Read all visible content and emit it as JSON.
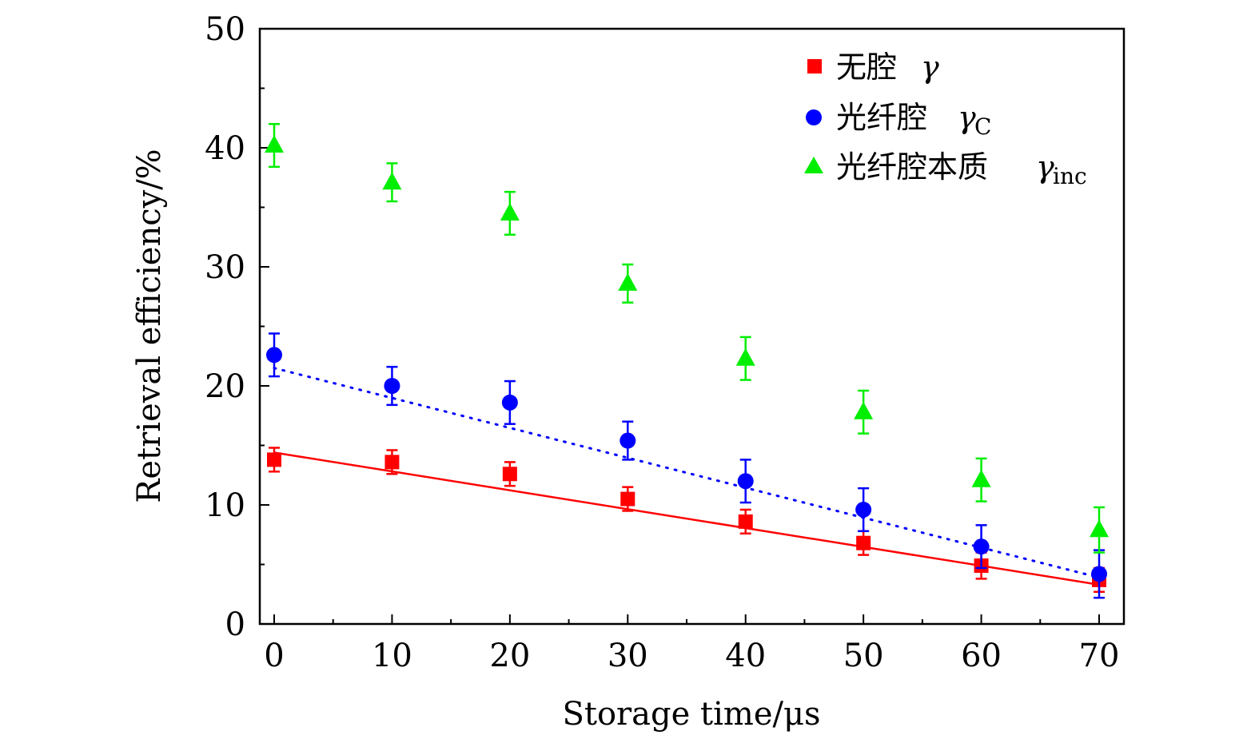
{
  "chart_data": {
    "type": "scatter",
    "xlabel": "Storage time/μs",
    "ylabel": "Retrieval efficiency/%",
    "xlim": [
      -1,
      72
    ],
    "ylim": [
      0,
      50
    ],
    "xticks": [
      0,
      10,
      20,
      30,
      40,
      50,
      60,
      70
    ],
    "yticks": [
      0,
      10,
      20,
      30,
      40,
      50
    ],
    "grid": false,
    "legend_position": "top-right",
    "series": [
      {
        "name": "无腔",
        "symbol": "γ",
        "subscript": "",
        "marker": "square",
        "color": "#ff0000",
        "x": [
          0,
          10,
          20,
          30,
          40,
          50,
          60,
          70
        ],
        "y": [
          13.8,
          13.6,
          12.6,
          10.5,
          8.6,
          6.8,
          4.9,
          3.7
        ],
        "err": [
          1.0,
          1.0,
          1.0,
          1.0,
          1.0,
          1.0,
          1.1,
          1.0
        ],
        "fit": {
          "style": "solid",
          "x": [
            0,
            70
          ],
          "y": [
            14.4,
            3.3
          ]
        }
      },
      {
        "name": "光纤腔",
        "symbol": "γ",
        "subscript": "C",
        "marker": "circle",
        "color": "#0000ff",
        "x": [
          0,
          10,
          20,
          30,
          40,
          50,
          60,
          70
        ],
        "y": [
          22.6,
          20.0,
          18.6,
          15.4,
          12.0,
          9.6,
          6.5,
          4.2
        ],
        "err": [
          1.8,
          1.6,
          1.8,
          1.6,
          1.8,
          1.8,
          1.8,
          2.0
        ],
        "fit": {
          "style": "dotted",
          "x": [
            0,
            70
          ],
          "y": [
            21.5,
            3.9
          ]
        }
      },
      {
        "name": "光纤腔本质",
        "symbol": "γ",
        "subscript": "inc",
        "marker": "triangle",
        "color": "#00ee00",
        "x": [
          0,
          10,
          20,
          30,
          40,
          50,
          60,
          70
        ],
        "y": [
          40.2,
          37.1,
          34.5,
          28.6,
          22.3,
          17.8,
          12.1,
          7.9
        ],
        "err": [
          1.8,
          1.6,
          1.8,
          1.6,
          1.8,
          1.8,
          1.8,
          1.9
        ]
      }
    ]
  }
}
